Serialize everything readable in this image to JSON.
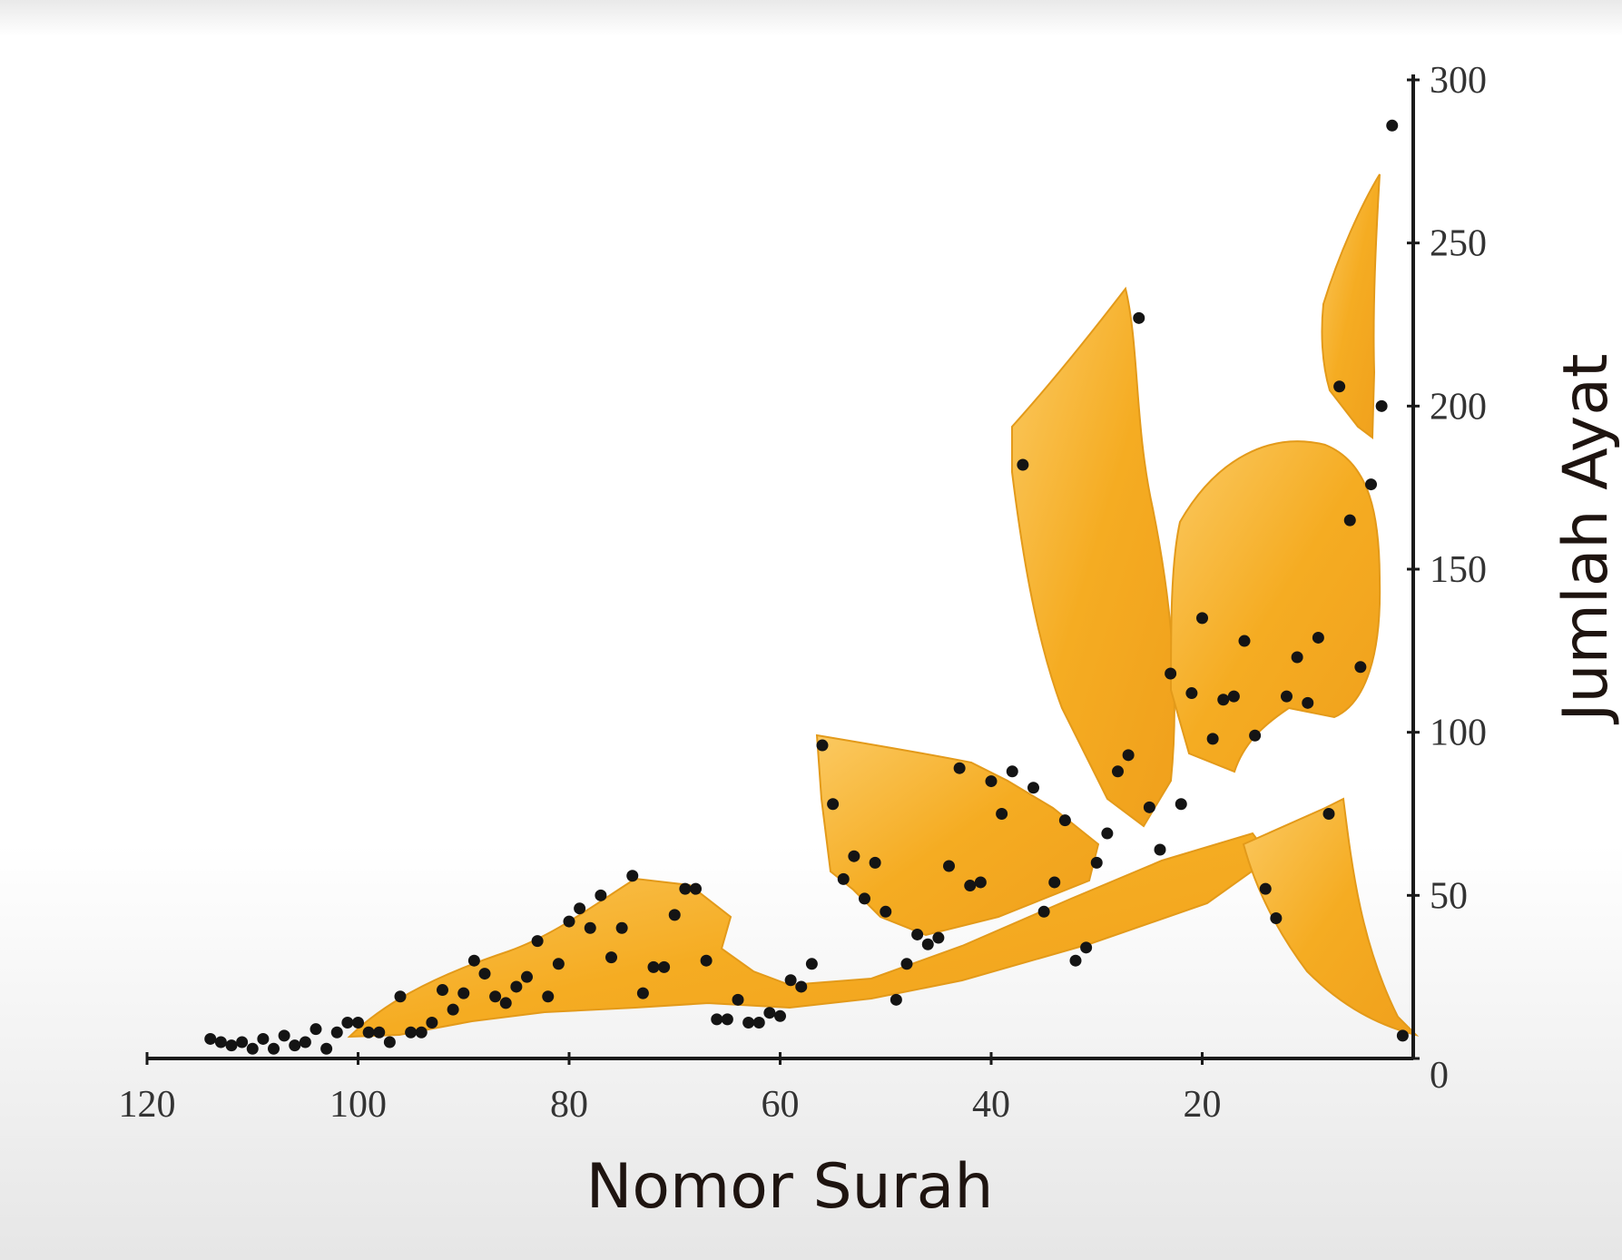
{
  "chart_data": {
    "type": "scatter",
    "xlabel": "Nomor Surah",
    "ylabel": "Jumlah Ayat",
    "xlim": [
      120,
      0
    ],
    "ylim": [
      0,
      300
    ],
    "x_ticks": [
      120,
      100,
      80,
      60,
      40,
      20
    ],
    "x_tick_labels": [
      "120",
      "100",
      "80",
      "60",
      "40",
      "20"
    ],
    "y_ticks": [
      0,
      50,
      100,
      150,
      200,
      250,
      300
    ],
    "y_tick_labels": [
      "0",
      "50",
      "100",
      "150",
      "200",
      "250",
      "300"
    ],
    "y_axis_side": "right",
    "x_axis_reversed": true,
    "grid": false,
    "colors": {
      "points": "#141414",
      "fill": "#f5ac22",
      "fill_light": "#fbc961",
      "axis": "#1a1a1a",
      "text": "#1e1410"
    },
    "points": [
      {
        "x": 1,
        "y": 7
      },
      {
        "x": 2,
        "y": 286
      },
      {
        "x": 3,
        "y": 200
      },
      {
        "x": 4,
        "y": 176
      },
      {
        "x": 5,
        "y": 120
      },
      {
        "x": 6,
        "y": 165
      },
      {
        "x": 7,
        "y": 206
      },
      {
        "x": 8,
        "y": 75
      },
      {
        "x": 9,
        "y": 129
      },
      {
        "x": 10,
        "y": 109
      },
      {
        "x": 11,
        "y": 123
      },
      {
        "x": 12,
        "y": 111
      },
      {
        "x": 13,
        "y": 43
      },
      {
        "x": 14,
        "y": 52
      },
      {
        "x": 15,
        "y": 99
      },
      {
        "x": 16,
        "y": 128
      },
      {
        "x": 17,
        "y": 111
      },
      {
        "x": 18,
        "y": 110
      },
      {
        "x": 19,
        "y": 98
      },
      {
        "x": 20,
        "y": 135
      },
      {
        "x": 21,
        "y": 112
      },
      {
        "x": 22,
        "y": 78
      },
      {
        "x": 23,
        "y": 118
      },
      {
        "x": 24,
        "y": 64
      },
      {
        "x": 25,
        "y": 77
      },
      {
        "x": 26,
        "y": 227
      },
      {
        "x": 27,
        "y": 93
      },
      {
        "x": 28,
        "y": 88
      },
      {
        "x": 29,
        "y": 69
      },
      {
        "x": 30,
        "y": 60
      },
      {
        "x": 31,
        "y": 34
      },
      {
        "x": 32,
        "y": 30
      },
      {
        "x": 33,
        "y": 73
      },
      {
        "x": 34,
        "y": 54
      },
      {
        "x": 35,
        "y": 45
      },
      {
        "x": 36,
        "y": 83
      },
      {
        "x": 37,
        "y": 182
      },
      {
        "x": 38,
        "y": 88
      },
      {
        "x": 39,
        "y": 75
      },
      {
        "x": 40,
        "y": 85
      },
      {
        "x": 41,
        "y": 54
      },
      {
        "x": 42,
        "y": 53
      },
      {
        "x": 43,
        "y": 89
      },
      {
        "x": 44,
        "y": 59
      },
      {
        "x": 45,
        "y": 37
      },
      {
        "x": 46,
        "y": 35
      },
      {
        "x": 47,
        "y": 38
      },
      {
        "x": 48,
        "y": 29
      },
      {
        "x": 49,
        "y": 18
      },
      {
        "x": 50,
        "y": 45
      },
      {
        "x": 51,
        "y": 60
      },
      {
        "x": 52,
        "y": 49
      },
      {
        "x": 53,
        "y": 62
      },
      {
        "x": 54,
        "y": 55
      },
      {
        "x": 55,
        "y": 78
      },
      {
        "x": 56,
        "y": 96
      },
      {
        "x": 57,
        "y": 29
      },
      {
        "x": 58,
        "y": 22
      },
      {
        "x": 59,
        "y": 24
      },
      {
        "x": 60,
        "y": 13
      },
      {
        "x": 61,
        "y": 14
      },
      {
        "x": 62,
        "y": 11
      },
      {
        "x": 63,
        "y": 11
      },
      {
        "x": 64,
        "y": 18
      },
      {
        "x": 65,
        "y": 12
      },
      {
        "x": 66,
        "y": 12
      },
      {
        "x": 67,
        "y": 30
      },
      {
        "x": 68,
        "y": 52
      },
      {
        "x": 69,
        "y": 52
      },
      {
        "x": 70,
        "y": 44
      },
      {
        "x": 71,
        "y": 28
      },
      {
        "x": 72,
        "y": 28
      },
      {
        "x": 73,
        "y": 20
      },
      {
        "x": 74,
        "y": 56
      },
      {
        "x": 75,
        "y": 40
      },
      {
        "x": 76,
        "y": 31
      },
      {
        "x": 77,
        "y": 50
      },
      {
        "x": 78,
        "y": 40
      },
      {
        "x": 79,
        "y": 46
      },
      {
        "x": 80,
        "y": 42
      },
      {
        "x": 81,
        "y": 29
      },
      {
        "x": 82,
        "y": 19
      },
      {
        "x": 83,
        "y": 36
      },
      {
        "x": 84,
        "y": 25
      },
      {
        "x": 85,
        "y": 22
      },
      {
        "x": 86,
        "y": 17
      },
      {
        "x": 87,
        "y": 19
      },
      {
        "x": 88,
        "y": 26
      },
      {
        "x": 89,
        "y": 30
      },
      {
        "x": 90,
        "y": 20
      },
      {
        "x": 91,
        "y": 15
      },
      {
        "x": 92,
        "y": 21
      },
      {
        "x": 93,
        "y": 11
      },
      {
        "x": 94,
        "y": 8
      },
      {
        "x": 95,
        "y": 8
      },
      {
        "x": 96,
        "y": 19
      },
      {
        "x": 97,
        "y": 5
      },
      {
        "x": 98,
        "y": 8
      },
      {
        "x": 99,
        "y": 8
      },
      {
        "x": 100,
        "y": 11
      },
      {
        "x": 101,
        "y": 11
      },
      {
        "x": 102,
        "y": 8
      },
      {
        "x": 103,
        "y": 3
      },
      {
        "x": 104,
        "y": 9
      },
      {
        "x": 105,
        "y": 5
      },
      {
        "x": 106,
        "y": 4
      },
      {
        "x": 107,
        "y": 7
      },
      {
        "x": 108,
        "y": 3
      },
      {
        "x": 109,
        "y": 6
      },
      {
        "x": 110,
        "y": 3
      },
      {
        "x": 111,
        "y": 5
      },
      {
        "x": 112,
        "y": 4
      },
      {
        "x": 113,
        "y": 5
      },
      {
        "x": 114,
        "y": 6
      }
    ]
  }
}
